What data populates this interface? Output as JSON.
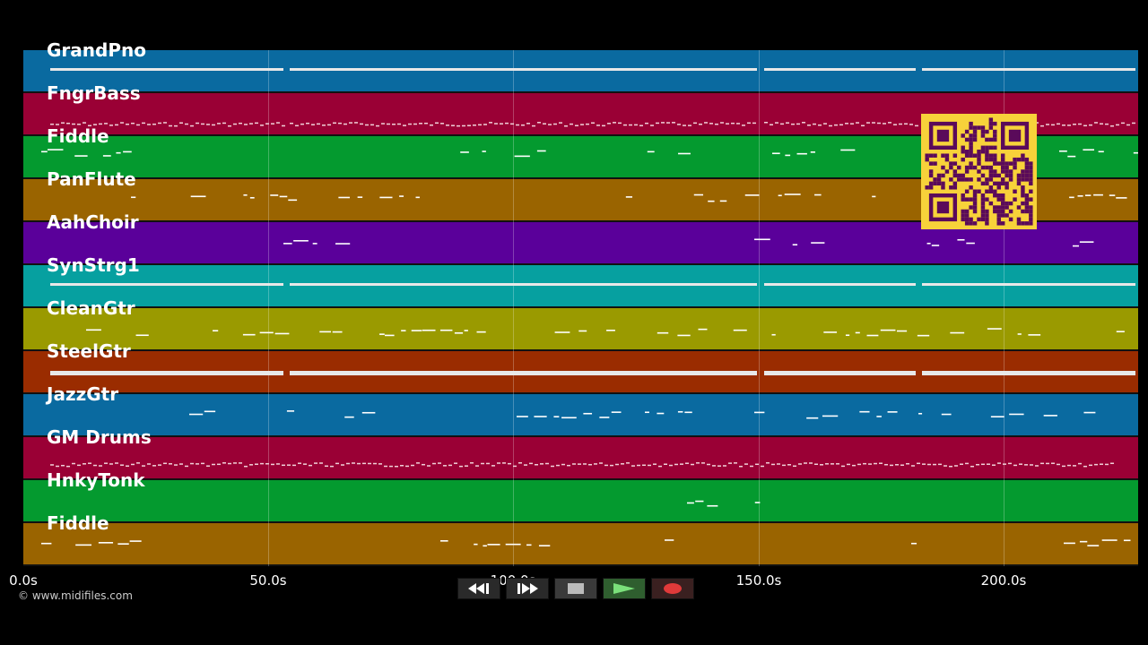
{
  "tracks": [
    {
      "name": "GrandPno",
      "color": "#0a6aa0"
    },
    {
      "name": "FngrBass",
      "color": "#9a0035"
    },
    {
      "name": "Fiddle",
      "color": "#049a2f"
    },
    {
      "name": "PanFlute",
      "color": "#9a6400"
    },
    {
      "name": "AahChoir",
      "color": "#5a009a"
    },
    {
      "name": "SynStrg1",
      "color": "#06a0a0"
    },
    {
      "name": "CleanGtr",
      "color": "#9a9a00"
    },
    {
      "name": "SteelGtr",
      "color": "#9a2c00"
    },
    {
      "name": "JazzGtr",
      "color": "#0a6aa0"
    },
    {
      "name": "GM Drums",
      "color": "#9a0035"
    },
    {
      "name": "HnkyTonk",
      "color": "#049a2f"
    },
    {
      "name": "Fiddle",
      "color": "#9a6400"
    }
  ],
  "axis": {
    "ticks": [
      "0.0s",
      "50.0s",
      "100.0s",
      "150.0s",
      "200.0s"
    ],
    "tick_values": [
      0,
      50,
      100,
      150,
      200
    ],
    "range": [
      0,
      227.5
    ]
  },
  "credit": "© www.midifiles.com",
  "transport": {
    "rewind_icon": "rewind-icon",
    "forward_icon": "fast-forward-icon",
    "stop_icon": "stop-icon",
    "play_icon": "play-icon",
    "record_icon": "record-icon"
  },
  "qr_icon": "qr-code-icon"
}
